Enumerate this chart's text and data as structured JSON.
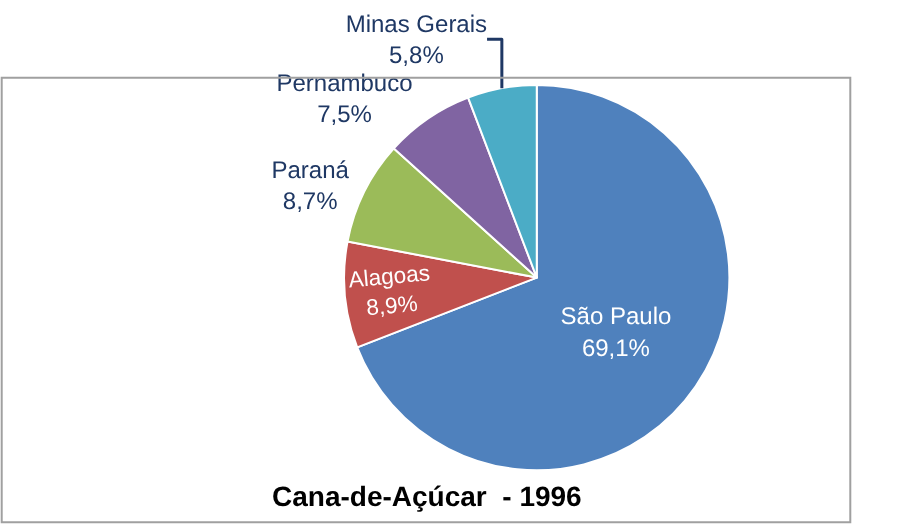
{
  "chart_data": {
    "type": "pie",
    "title": "Cana-de-Açúcar  - 1996",
    "categories": [
      "São Paulo",
      "Alagoas",
      "Paraná",
      "Pernambuco",
      "Minas Gerais"
    ],
    "values": [
      69.1,
      8.9,
      8.7,
      7.5,
      5.8
    ],
    "value_labels": [
      "69,1%",
      "8,9%",
      "8,7%",
      "7,5%",
      "5,8%"
    ],
    "colors": [
      "#4f81bd",
      "#c0504d",
      "#9bbb59",
      "#8064a2",
      "#4bacc6"
    ],
    "legend": false
  }
}
